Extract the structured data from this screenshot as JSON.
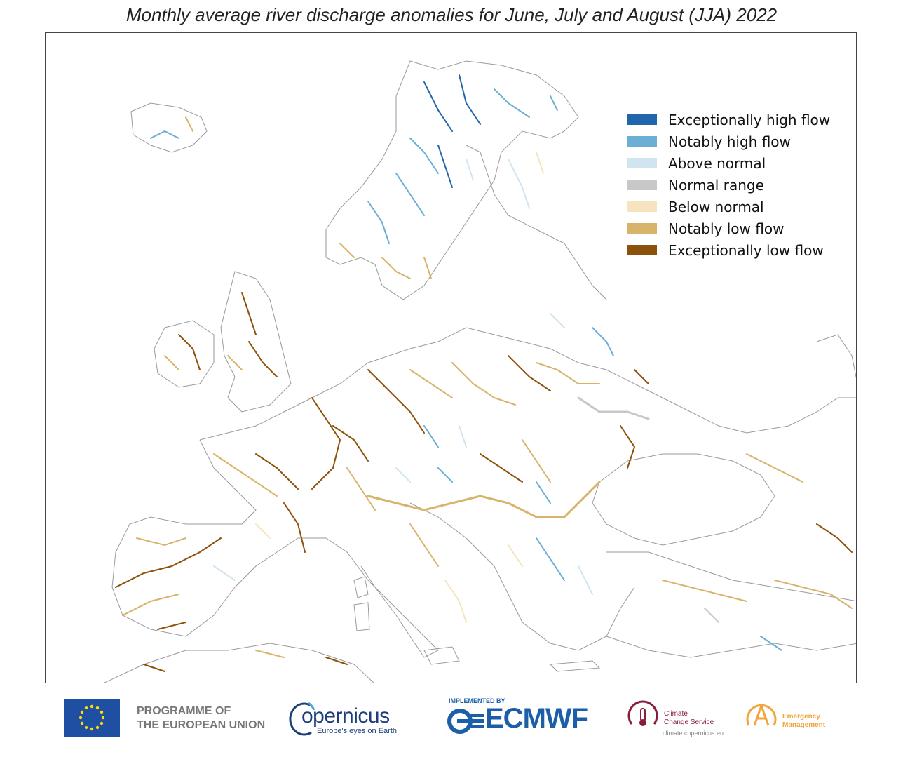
{
  "title": "Monthly average river discharge anomalies for June, July and August (JJA) 2022",
  "legend": [
    {
      "label": "Exceptionally high flow",
      "color": "#2166ac"
    },
    {
      "label": "Notably high flow",
      "color": "#6baed6"
    },
    {
      "label": "Above normal",
      "color": "#d1e5f0"
    },
    {
      "label": "Normal range",
      "color": "#c8c8c8"
    },
    {
      "label": "Below normal",
      "color": "#f6e4c0"
    },
    {
      "label": "Notably low flow",
      "color": "#d8b36a"
    },
    {
      "label": "Exceptionally low flow",
      "color": "#8c510a"
    }
  ],
  "footer": {
    "eu_line1": "PROGRAMME OF",
    "eu_line2": "THE EUROPEAN UNION",
    "copernicus_word": "opernicus",
    "copernicus_tagline": "Europe's eyes on Earth",
    "implemented_by": "IMPLEMENTED BY",
    "ecmwf": "ECMWF",
    "c3s_line1": "Climate",
    "c3s_line2": "Change Service",
    "c3s_url": "climate.copernicus.eu",
    "em_line1": "Emergency",
    "em_line2": "Management"
  }
}
